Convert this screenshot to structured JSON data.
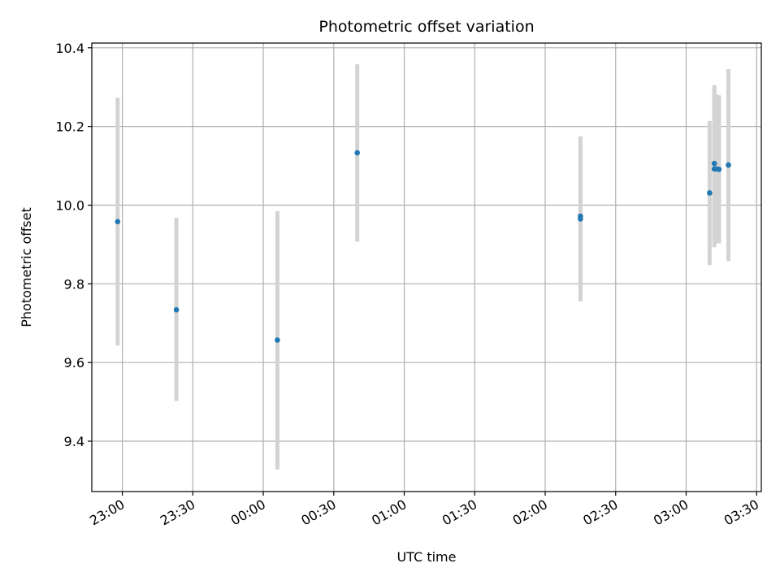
{
  "chart_data": {
    "type": "scatter",
    "title": "Photometric offset variation",
    "xlabel": "UTC time",
    "ylabel": "Photometric offset",
    "xlim": [
      "22:47",
      "03:32"
    ],
    "ylim": [
      9.272,
      10.412
    ],
    "grid": true,
    "xticks": [
      "23:00",
      "23:30",
      "00:00",
      "00:30",
      "01:00",
      "01:30",
      "02:00",
      "02:30",
      "03:00",
      "03:30"
    ],
    "yticks": [
      "9.4",
      "9.6",
      "9.8",
      "10.0",
      "10.2",
      "10.4"
    ],
    "points": [
      {
        "time": "22:58",
        "offset": 9.958,
        "err_low": 9.643,
        "err_high": 10.273
      },
      {
        "time": "23:23",
        "offset": 9.734,
        "err_low": 9.502,
        "err_high": 9.968
      },
      {
        "time": "00:06",
        "offset": 9.657,
        "err_low": 9.328,
        "err_high": 9.985
      },
      {
        "time": "00:40",
        "offset": 10.133,
        "err_low": 9.907,
        "err_high": 10.358
      },
      {
        "time": "02:15",
        "offset": 9.965,
        "err_low": 9.755,
        "err_high": 10.175
      },
      {
        "time": "02:15",
        "offset": 9.972,
        "err_low": 9.792,
        "err_high": 10.152
      },
      {
        "time": "03:10",
        "offset": 10.031,
        "err_low": 9.848,
        "err_high": 10.214
      },
      {
        "time": "03:12",
        "offset": 10.106,
        "err_low": 9.907,
        "err_high": 10.305
      },
      {
        "time": "03:12",
        "offset": 10.092,
        "err_low": 9.893,
        "err_high": 10.291
      },
      {
        "time": "03:13",
        "offset": 10.092,
        "err_low": 9.903,
        "err_high": 10.281
      },
      {
        "time": "03:14",
        "offset": 10.091,
        "err_low": 9.903,
        "err_high": 10.279
      },
      {
        "time": "03:18",
        "offset": 10.102,
        "err_low": 9.858,
        "err_high": 10.346
      }
    ],
    "colors": {
      "point": "#1f77b4",
      "errorbar": "#d3d3d3",
      "grid": "#b0b0b0",
      "axis": "#000000"
    }
  }
}
